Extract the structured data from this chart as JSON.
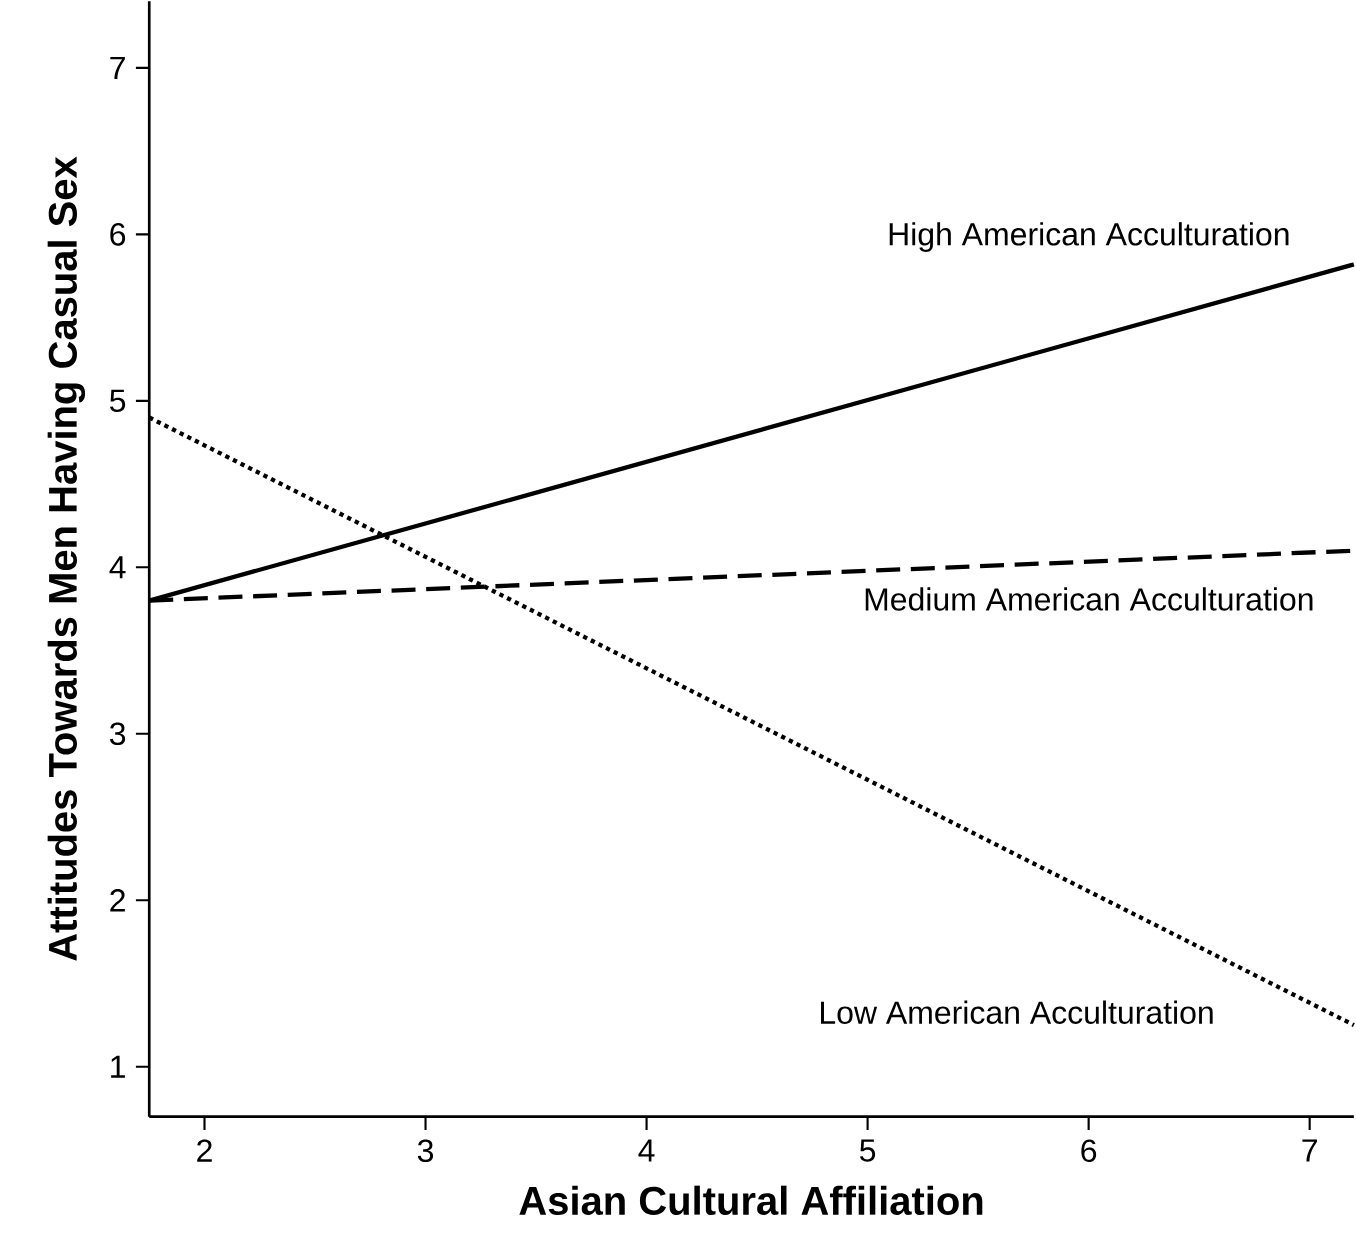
{
  "chart_data": {
    "type": "line",
    "xlabel": "Asian Cultural Affiliation",
    "ylabel": "Attitudes Towards Men Having Casual Sex",
    "xlim": [
      1.75,
      7.2
    ],
    "ylim": [
      0.7,
      7.4
    ],
    "xticks": [
      2,
      3,
      4,
      5,
      6,
      7
    ],
    "yticks": [
      1,
      2,
      3,
      4,
      5,
      6,
      7
    ],
    "x": [
      1.75,
      7.2
    ],
    "series": [
      {
        "name": "High American Acculturation",
        "color": "#000000",
        "line_style": "solid",
        "values": [
          3.8,
          5.82
        ]
      },
      {
        "name": "Medium American Acculturation",
        "color": "#000000",
        "line_style": "dashed",
        "values": [
          3.8,
          4.1
        ]
      },
      {
        "name": "Low American Acculturation",
        "color": "#000000",
        "line_style": "dotted",
        "values": [
          4.9,
          1.25
        ]
      }
    ]
  }
}
